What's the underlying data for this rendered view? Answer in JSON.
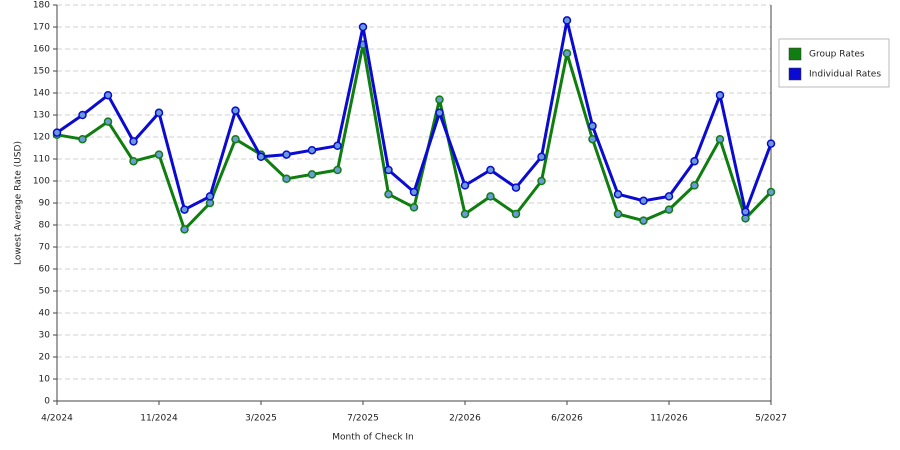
{
  "chart_data": {
    "type": "line",
    "x_label": "Month of Check In",
    "y_label": "Lowest Average Rate (USD)",
    "categories": [
      "4/2024",
      null,
      null,
      null,
      "11/2024",
      null,
      null,
      null,
      "3/2025",
      null,
      null,
      null,
      "7/2025",
      null,
      null,
      null,
      "2/2026",
      null,
      null,
      null,
      "6/2026",
      null,
      null,
      null,
      "11/2026",
      null,
      null,
      null,
      "5/2027"
    ],
    "series": [
      {
        "name": "Group Rates",
        "color": "#0f7d0f",
        "values": [
          121,
          119,
          127,
          109,
          112,
          78,
          90,
          119,
          112,
          101,
          103,
          105,
          162,
          94,
          88,
          137,
          85,
          93,
          85,
          100,
          158,
          119,
          85,
          82,
          87,
          98,
          119,
          83,
          95
        ]
      },
      {
        "name": "Individual Rates",
        "color": "#0a0ad2",
        "values": [
          122,
          130,
          139,
          118,
          131,
          87,
          93,
          132,
          111,
          112,
          114,
          116,
          170,
          105,
          95,
          131,
          98,
          105,
          97,
          111,
          173,
          125,
          94,
          91,
          93,
          109,
          139,
          86,
          117
        ]
      }
    ],
    "ylim": [
      0,
      180
    ],
    "yticks": [
      0,
      10,
      20,
      30,
      40,
      50,
      60,
      70,
      80,
      90,
      100,
      110,
      120,
      130,
      140,
      150,
      160,
      170,
      180
    ],
    "grid": true,
    "legend": "right"
  }
}
